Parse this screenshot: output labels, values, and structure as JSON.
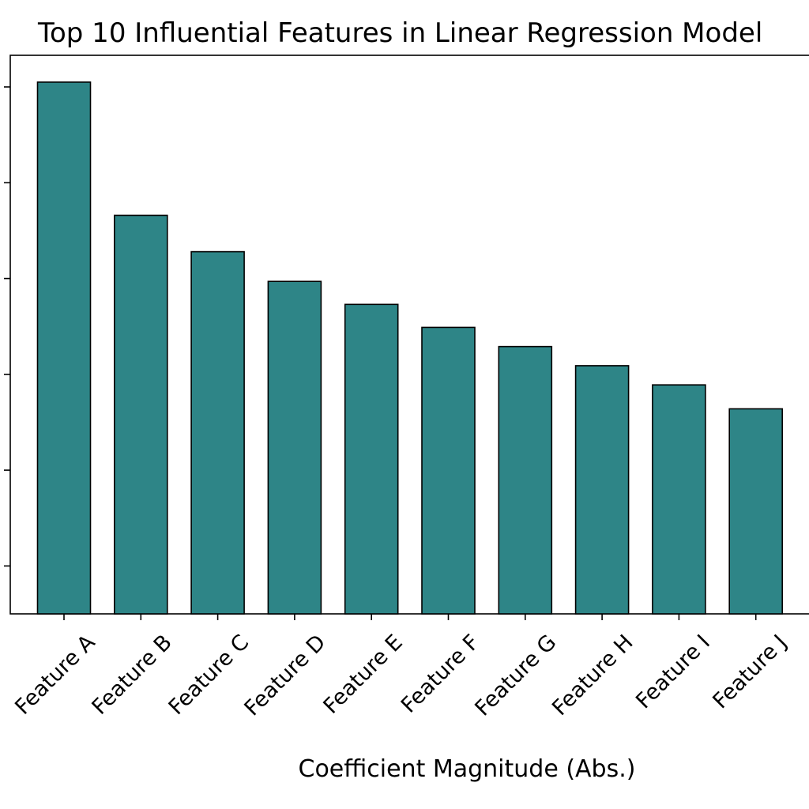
{
  "chart_data": {
    "type": "bar",
    "title": "Top 10 Influential Features in Linear Regression Model",
    "xlabel": "Coefficient Magnitude (Abs.)",
    "ylabel": "",
    "categories": [
      "Feature A",
      "Feature B",
      "Feature C",
      "Feature D",
      "Feature E",
      "Feature F",
      "Feature G",
      "Feature H",
      "Feature I",
      "Feature J"
    ],
    "values": [
      5.55,
      4.16,
      3.78,
      3.47,
      3.23,
      2.99,
      2.79,
      2.59,
      2.39,
      2.14
    ],
    "ylim": [
      0,
      5.83
    ],
    "yticks": [
      0.5,
      1.5,
      2.5,
      3.5,
      4.5,
      5.5
    ],
    "show_ytick_labels": false,
    "grid": false,
    "legend": "none",
    "bar_color": "#2e8587",
    "bar_edge_color": "#000000"
  }
}
